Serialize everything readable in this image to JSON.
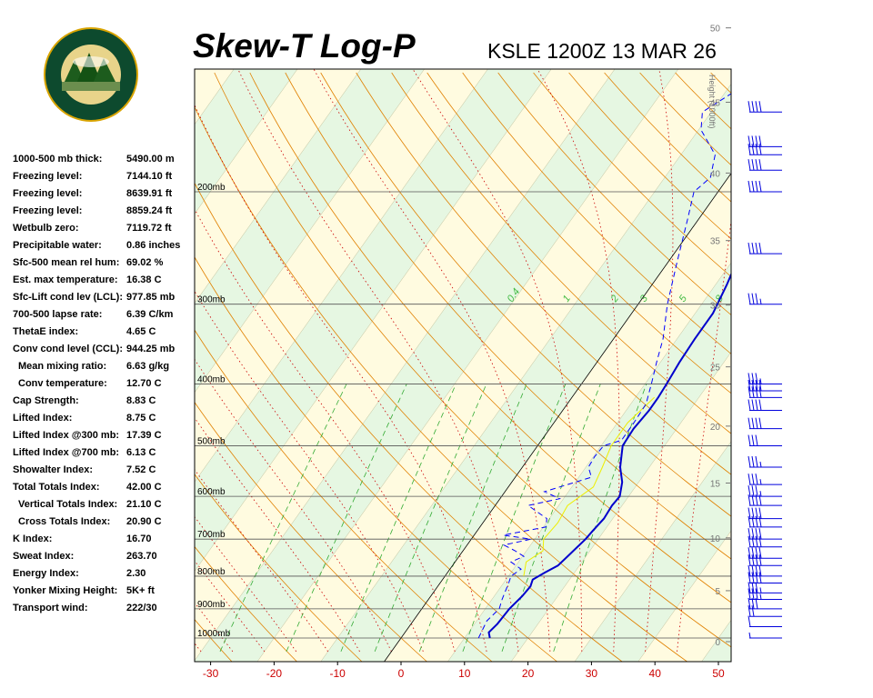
{
  "header": {
    "title": "Skew-T Log-P",
    "station_time": "KSLE 1200Z 13 MAR 26"
  },
  "logo": {
    "top_text": "OREGON",
    "bottom_text": "DEPARTMENT OF FORESTRY"
  },
  "colors": {
    "temperature_trace": "#0000cc",
    "dewpoint_trace": "#0000ff",
    "parcel_trace": "#eeee00",
    "dry_adiabat": "#e08000",
    "moist_adiabat": "#cc0000",
    "mixing_ratio": "#33aa33",
    "wind_barb": "#0000dd",
    "band_yellow": "#fffbe0",
    "band_green": "#e6f7e2"
  },
  "stats": [
    {
      "label": "1000-500 mb thick:",
      "value": "5490.00 m",
      "indent": false
    },
    {
      "label": "Freezing level:",
      "value": "7144.10 ft",
      "indent": false
    },
    {
      "label": "Freezing level:",
      "value": "8639.91 ft",
      "indent": false
    },
    {
      "label": "Freezing level:",
      "value": "8859.24 ft",
      "indent": false
    },
    {
      "label": "Wetbulb zero:",
      "value": "7119.72 ft",
      "indent": false
    },
    {
      "label": "Precipitable water:",
      "value": "0.86 inches",
      "indent": false
    },
    {
      "label": "Sfc-500 mean rel hum:",
      "value": "69.02 %",
      "indent": false
    },
    {
      "label": "Est. max temperature:",
      "value": "16.38 C",
      "indent": false
    },
    {
      "label": "Sfc-Lift cond lev (LCL):",
      "value": "977.85 mb",
      "indent": false
    },
    {
      "label": "700-500 lapse rate:",
      "value": "6.39 C/km",
      "indent": false
    },
    {
      "label": "ThetaE index:",
      "value": "4.65 C",
      "indent": false
    },
    {
      "label": "Conv cond level (CCL):",
      "value": "944.25 mb",
      "indent": false
    },
    {
      "label": "Mean mixing ratio:",
      "value": "6.63 g/kg",
      "indent": true
    },
    {
      "label": "Conv temperature:",
      "value": "12.70 C",
      "indent": true
    },
    {
      "label": "Cap Strength:",
      "value": "8.83 C",
      "indent": false
    },
    {
      "label": "Lifted Index:",
      "value": "8.75 C",
      "indent": false
    },
    {
      "label": "Lifted Index @300 mb:",
      "value": "17.39 C",
      "indent": false
    },
    {
      "label": "Lifted Index @700 mb:",
      "value": "6.13 C",
      "indent": false
    },
    {
      "label": "Showalter Index:",
      "value": "7.52 C",
      "indent": false
    },
    {
      "label": "Total Totals Index:",
      "value": "42.00 C",
      "indent": false
    },
    {
      "label": "Vertical Totals Index:",
      "value": "21.10 C",
      "indent": true
    },
    {
      "label": "Cross Totals Index:",
      "value": "20.90 C",
      "indent": true
    },
    {
      "label": "K Index:",
      "value": "16.70",
      "indent": false
    },
    {
      "label": "Sweat Index:",
      "value": "263.70",
      "indent": false
    },
    {
      "label": "Energy Index:",
      "value": "2.30",
      "indent": false
    },
    {
      "label": "Yonker Mixing Height:",
      "value": "5K+ ft",
      "indent": false
    },
    {
      "label": "Transport wind:",
      "value": "222/30",
      "indent": false
    }
  ],
  "chart_data": {
    "type": "line",
    "title": "Skew-T Log-P",
    "subtitle": "KSLE 1200Z 13 MAR 26",
    "x_ticks": [
      -30,
      -20,
      -10,
      0,
      10,
      20,
      30,
      40,
      50
    ],
    "xlim": [
      -30,
      50
    ],
    "pressure_levels": [
      {
        "p": 200,
        "label": "200mb"
      },
      {
        "p": 300,
        "label": "300mb"
      },
      {
        "p": 400,
        "label": "400mb"
      },
      {
        "p": 500,
        "label": "500mb"
      },
      {
        "p": 600,
        "label": "600mb"
      },
      {
        "p": 700,
        "label": "700mb"
      },
      {
        "p": 800,
        "label": "800mb"
      },
      {
        "p": 900,
        "label": "900mb"
      },
      {
        "p": 1000,
        "label": "1000mb"
      }
    ],
    "height_axis_label": "Height (1000ft)",
    "height_ticks": [
      0,
      5,
      10,
      15,
      20,
      25,
      30,
      35,
      40,
      45,
      50
    ],
    "mixing_ratio_labels": [
      "0.4",
      "1",
      "2",
      "3",
      "5",
      "8"
    ],
    "temperature_profile": [
      {
        "p": 1000,
        "t": 14.0
      },
      {
        "p": 980,
        "t": 13.2
      },
      {
        "p": 950,
        "t": 13.6
      },
      {
        "p": 900,
        "t": 13.8
      },
      {
        "p": 860,
        "t": 14.4
      },
      {
        "p": 830,
        "t": 14.6
      },
      {
        "p": 810,
        "t": 14.2
      },
      {
        "p": 790,
        "t": 15.3
      },
      {
        "p": 770,
        "t": 16.6
      },
      {
        "p": 740,
        "t": 17.2
      },
      {
        "p": 700,
        "t": 18.0
      },
      {
        "p": 680,
        "t": 18.2
      },
      {
        "p": 650,
        "t": 18.6
      },
      {
        "p": 620,
        "t": 18.4
      },
      {
        "p": 600,
        "t": 18.6
      },
      {
        "p": 570,
        "t": 17.4
      },
      {
        "p": 540,
        "t": 15.4
      },
      {
        "p": 500,
        "t": 13.4
      },
      {
        "p": 470,
        "t": 13.2
      },
      {
        "p": 440,
        "t": 13.6
      },
      {
        "p": 420,
        "t": 13.6
      },
      {
        "p": 400,
        "t": 13.4
      },
      {
        "p": 370,
        "t": 13.0
      },
      {
        "p": 340,
        "t": 12.8
      },
      {
        "p": 310,
        "t": 12.8
      },
      {
        "p": 280,
        "t": 11.8
      },
      {
        "p": 250,
        "t": 10.4
      },
      {
        "p": 230,
        "t": 8.6
      },
      {
        "p": 200,
        "t": 7.4
      },
      {
        "p": 190,
        "t": 8.2
      },
      {
        "p": 170,
        "t": 12.6
      },
      {
        "p": 150,
        "t": 19.6
      },
      {
        "p": 140,
        "t": 22.4
      }
    ],
    "dewpoint_profile": [
      {
        "p": 1000,
        "t": 12.2
      },
      {
        "p": 940,
        "t": 11.6
      },
      {
        "p": 900,
        "t": 12.2
      },
      {
        "p": 870,
        "t": 11.6
      },
      {
        "p": 820,
        "t": 10.8
      },
      {
        "p": 800,
        "t": 10.4
      },
      {
        "p": 780,
        "t": 11.2
      },
      {
        "p": 760,
        "t": 8.8
      },
      {
        "p": 745,
        "t": 10.2
      },
      {
        "p": 730,
        "t": 8.2
      },
      {
        "p": 715,
        "t": 5.8
      },
      {
        "p": 700,
        "t": 9.4
      },
      {
        "p": 690,
        "t": 4.6
      },
      {
        "p": 670,
        "t": 10.4
      },
      {
        "p": 650,
        "t": 9.6
      },
      {
        "p": 620,
        "t": 5.2
      },
      {
        "p": 605,
        "t": 9.4
      },
      {
        "p": 590,
        "t": 6.2
      },
      {
        "p": 560,
        "t": 12.0
      },
      {
        "p": 540,
        "t": 10.4
      },
      {
        "p": 520,
        "t": 10.2
      },
      {
        "p": 500,
        "t": 10.4
      },
      {
        "p": 490,
        "t": 12.6
      },
      {
        "p": 460,
        "t": 12.6
      },
      {
        "p": 430,
        "t": 12.4
      },
      {
        "p": 400,
        "t": 11.0
      },
      {
        "p": 370,
        "t": 9.4
      },
      {
        "p": 340,
        "t": 7.8
      },
      {
        "p": 300,
        "t": 4.6
      },
      {
        "p": 260,
        "t": 1.6
      },
      {
        "p": 220,
        "t": -1.8
      },
      {
        "p": 200,
        "t": -3.8
      },
      {
        "p": 190,
        "t": -2.8
      },
      {
        "p": 175,
        "t": -4.6
      },
      {
        "p": 160,
        "t": -9.6
      },
      {
        "p": 150,
        "t": -11.4
      },
      {
        "p": 140,
        "t": -8.8
      }
    ],
    "parcel_profile": [
      {
        "p": 800,
        "t": 12.4
      },
      {
        "p": 760,
        "t": 11.2
      },
      {
        "p": 730,
        "t": 12.6
      },
      {
        "p": 700,
        "t": 11.4
      },
      {
        "p": 660,
        "t": 11.8
      },
      {
        "p": 620,
        "t": 11.4
      },
      {
        "p": 580,
        "t": 13.4
      },
      {
        "p": 540,
        "t": 12.6
      },
      {
        "p": 500,
        "t": 11.6
      },
      {
        "p": 460,
        "t": 11.6
      },
      {
        "p": 420,
        "t": 13.0
      }
    ],
    "wind_barbs": [
      {
        "p": 1000,
        "speed": 5
      },
      {
        "p": 960,
        "speed": 10
      },
      {
        "p": 925,
        "speed": 20
      },
      {
        "p": 900,
        "speed": 30
      },
      {
        "p": 870,
        "speed": 35
      },
      {
        "p": 850,
        "speed": 35
      },
      {
        "p": 820,
        "speed": 40
      },
      {
        "p": 800,
        "speed": 40
      },
      {
        "p": 770,
        "speed": 40
      },
      {
        "p": 750,
        "speed": 40
      },
      {
        "p": 720,
        "speed": 40
      },
      {
        "p": 700,
        "speed": 40
      },
      {
        "p": 670,
        "speed": 40
      },
      {
        "p": 650,
        "speed": 40
      },
      {
        "p": 620,
        "speed": 40
      },
      {
        "p": 600,
        "speed": 35
      },
      {
        "p": 575,
        "speed": 35
      },
      {
        "p": 540,
        "speed": 35
      },
      {
        "p": 500,
        "speed": 30
      },
      {
        "p": 470,
        "speed": 40
      },
      {
        "p": 440,
        "speed": 40
      },
      {
        "p": 420,
        "speed": 40
      },
      {
        "p": 410,
        "speed": 40
      },
      {
        "p": 400,
        "speed": 35
      },
      {
        "p": 300,
        "speed": 35
      },
      {
        "p": 250,
        "speed": 40
      },
      {
        "p": 200,
        "speed": 40
      },
      {
        "p": 185,
        "speed": 40
      },
      {
        "p": 175,
        "speed": 40
      },
      {
        "p": 170,
        "speed": 40
      },
      {
        "p": 150,
        "speed": 40
      }
    ]
  }
}
